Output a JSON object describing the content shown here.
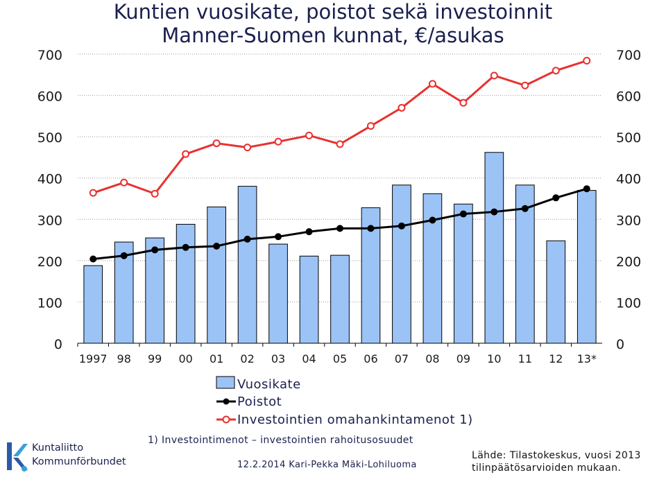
{
  "title": "Kuntien vuosikate, poistot sekä investoinnit",
  "subtitle": "Manner-Suomen kunnat, €/asukas",
  "footnote": "1) Investointimenot – investointien rahoitusosuudet",
  "date_author": "12.2.2014 Kari-Pekka Mäki-Lohiluoma",
  "source_line1": "Lähde: Tilastokeskus, vuosi 2013",
  "source_line2": "tilinpäätösarvioiden mukaan.",
  "logo": {
    "line1": "Kuntaliitto",
    "line2": "Kommunförbundet",
    "icon": "kuntaliitto-logo-icon"
  },
  "colors": {
    "bar_fill": "#9cc3f5",
    "bar_stroke": "#000000",
    "poistot": "#000000",
    "investoinnit": "#e8312f",
    "title": "#1a1f4e",
    "grid": "#999999"
  },
  "chart_data": {
    "type": "bar",
    "categories": [
      "1997",
      "98",
      "99",
      "00",
      "01",
      "02",
      "03",
      "04",
      "05",
      "06",
      "07",
      "08",
      "09",
      "10",
      "11",
      "12",
      "13*"
    ],
    "ylim": [
      0,
      700
    ],
    "yticks": [
      0,
      100,
      200,
      300,
      400,
      500,
      600,
      700
    ],
    "grid": true,
    "legend_position": "bottom",
    "series": [
      {
        "name": "Vuosikate",
        "type": "bar",
        "values": [
          188,
          245,
          255,
          288,
          330,
          380,
          240,
          211,
          213,
          328,
          383,
          362,
          337,
          462,
          383,
          248,
          370
        ]
      },
      {
        "name": "Poistot",
        "type": "line",
        "values": [
          204,
          212,
          226,
          232,
          235,
          252,
          258,
          270,
          278,
          278,
          284,
          298,
          313,
          318,
          326,
          352,
          374
        ]
      },
      {
        "name": "Investointien omahankintamenot 1)",
        "type": "line",
        "values": [
          364,
          389,
          362,
          458,
          484,
          474,
          488,
          503,
          482,
          526,
          570,
          628,
          582,
          648,
          624,
          660,
          684
        ]
      }
    ]
  }
}
